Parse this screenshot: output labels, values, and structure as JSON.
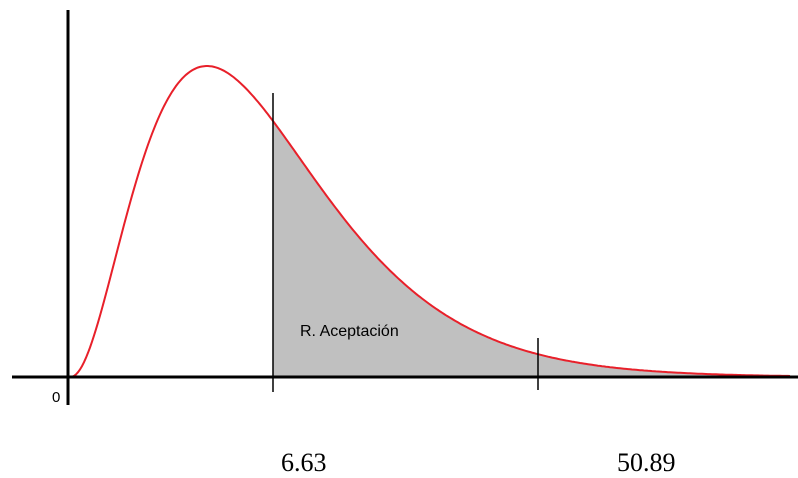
{
  "diagram": {
    "origin_label": "0",
    "region_label": "R. Aceptación",
    "lower_bound_label": "6.63",
    "upper_bound_label": "50.89",
    "colors": {
      "curve": "#e8202a",
      "shade": "#c0c0c0",
      "axis": "#000000",
      "text": "#000000"
    }
  }
}
